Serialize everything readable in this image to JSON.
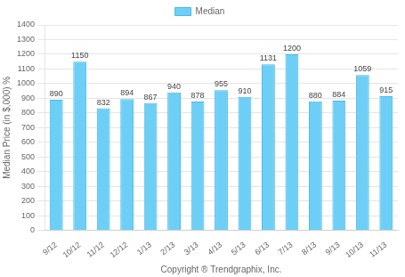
{
  "chart_data": {
    "type": "bar",
    "xlabel": "Copyright ® Trendgraphix, Inc.",
    "ylabel": "Median Price (in $,000) %",
    "categories": [
      "9/12",
      "10/12",
      "11/12",
      "12/12",
      "1/13",
      "2/13",
      "3/13",
      "4/13",
      "5/13",
      "6/13",
      "7/13",
      "8/13",
      "9/13",
      "10/13",
      "11/13"
    ],
    "series": [
      {
        "name": "Median",
        "color": "#6ecff6",
        "values": [
          890,
          1150,
          832,
          894,
          867,
          940,
          878,
          955,
          910,
          1131,
          1200,
          880,
          884,
          1059,
          915
        ]
      }
    ],
    "ylim": [
      0,
      1400
    ],
    "yticks": [
      0,
      100,
      200,
      300,
      400,
      500,
      600,
      700,
      800,
      900,
      1000,
      1100,
      1200,
      1300,
      1400
    ],
    "grid": true,
    "legend": "top",
    "data_labels": true
  }
}
